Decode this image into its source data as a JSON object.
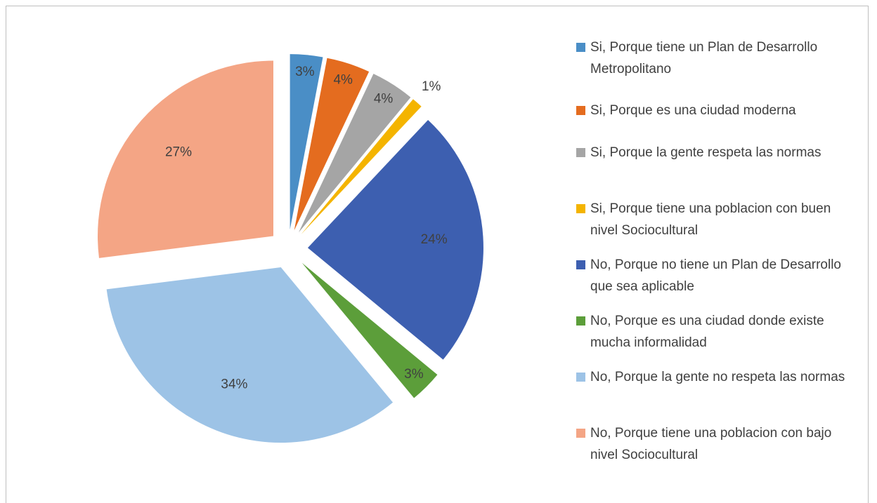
{
  "chart_data": {
    "type": "pie",
    "categories": [
      "Si, Porque tiene un Plan de Desarrollo Metropolitano",
      "Si, Porque es una ciudad moderna",
      "Si, Porque la gente respeta las normas",
      "Si, Porque tiene una poblacion con buen nivel Sociocultural",
      "No, Porque no tiene un Plan de Desarrollo que sea aplicable",
      "No, Porque es una ciudad donde existe mucha informalidad",
      "No, Porque la gente no respeta las normas",
      "No, Porque tiene una poblacion con bajo nivel Sociocultural"
    ],
    "values": [
      3,
      4,
      4,
      1,
      24,
      3,
      34,
      27
    ],
    "value_labels": [
      "3%",
      "4%",
      "4%",
      "1%",
      "24%",
      "3%",
      "34%",
      "27%"
    ],
    "colors": [
      "#4a8ec6",
      "#e46c1f",
      "#a5a5a5",
      "#f4b400",
      "#3d5fb0",
      "#5c9e3a",
      "#9dc3e6",
      "#f4a585"
    ],
    "legend": "right"
  }
}
